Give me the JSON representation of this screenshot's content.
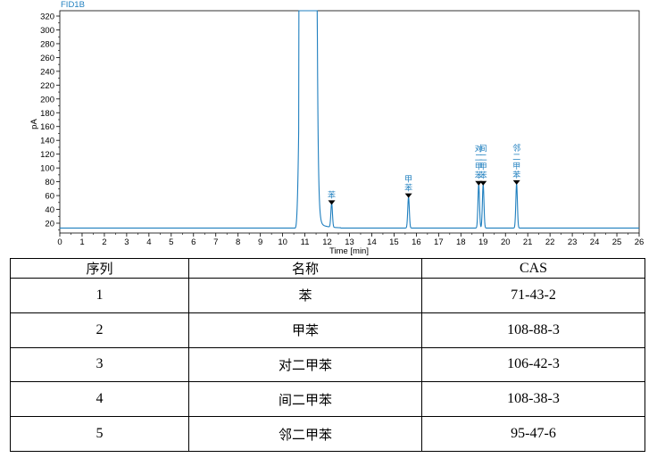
{
  "chart_data": {
    "type": "line",
    "title": "FID1B",
    "xlabel": "Time [min]",
    "ylabel": "pA",
    "xlim": [
      0,
      26
    ],
    "ylim": [
      10,
      325
    ],
    "x_ticks": [
      0,
      1,
      2,
      3,
      4,
      5,
      6,
      7,
      8,
      9,
      10,
      11,
      12,
      13,
      14,
      15,
      16,
      17,
      18,
      19,
      20,
      21,
      22,
      23,
      24,
      25,
      26
    ],
    "y_ticks": [
      20,
      40,
      60,
      80,
      100,
      120,
      140,
      160,
      180,
      200,
      220,
      240,
      260,
      280,
      300,
      320
    ],
    "grid": false,
    "series": [
      {
        "color": "#1f7fbf",
        "baseline": 13,
        "peaks": [
          {
            "time": 11.1,
            "height": 325,
            "label": ""
          },
          {
            "time": 12.2,
            "height": 48,
            "label": "苯"
          },
          {
            "time": 15.65,
            "height": 58,
            "label": "甲苯"
          },
          {
            "time": 18.8,
            "height": 76,
            "label": "对二甲苯"
          },
          {
            "time": 19.0,
            "height": 76,
            "label": "间二甲苯"
          },
          {
            "time": 20.5,
            "height": 77,
            "label": "邻二甲苯"
          }
        ]
      }
    ]
  },
  "table": {
    "headers": [
      "序列",
      "名称",
      "CAS"
    ],
    "rows": [
      [
        "1",
        "苯",
        "71-43-2"
      ],
      [
        "2",
        "甲苯",
        "108-88-3"
      ],
      [
        "3",
        "对二甲苯",
        "106-42-3"
      ],
      [
        "4",
        "间二甲苯",
        "108-38-3"
      ],
      [
        "5",
        "邻二甲苯",
        "95-47-6"
      ]
    ]
  }
}
